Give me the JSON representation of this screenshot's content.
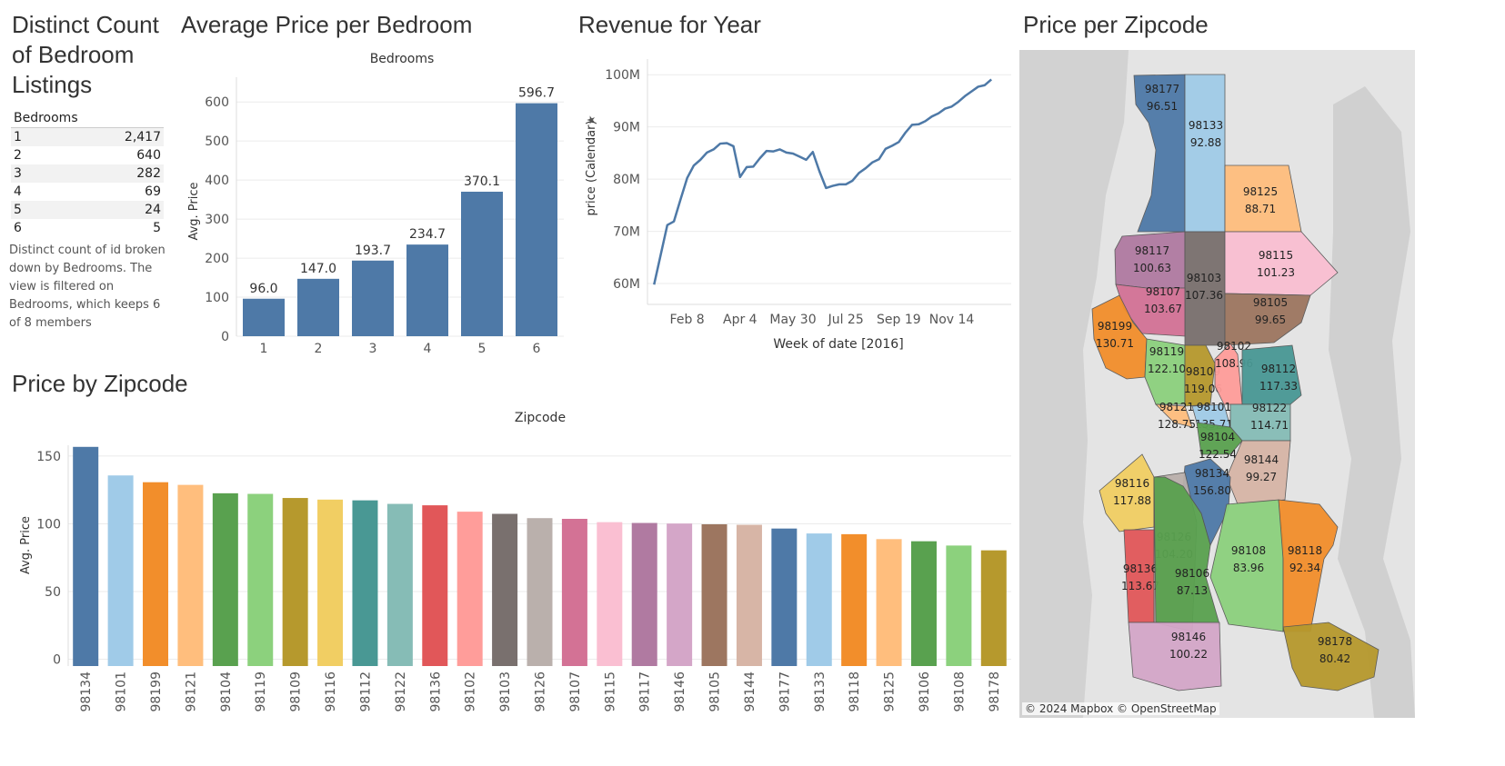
{
  "titles": {
    "distinct_count": "Distinct Count of Bedroom Listings",
    "avg_price_bedroom": "Average Price per Bedroom",
    "revenue_year": "Revenue for Year",
    "price_per_zipcode": "Price per Zipcode",
    "price_by_zipcode": "Price by Zipcode"
  },
  "bedroom_table": {
    "header": "Bedrooms",
    "rows": [
      {
        "bedrooms": "1",
        "count": "2,417"
      },
      {
        "bedrooms": "2",
        "count": "640"
      },
      {
        "bedrooms": "3",
        "count": "282"
      },
      {
        "bedrooms": "4",
        "count": "69"
      },
      {
        "bedrooms": "5",
        "count": "24"
      },
      {
        "bedrooms": "6",
        "count": "5"
      }
    ],
    "caption": "Distinct count of id broken down by Bedrooms. The view is filtered on Bedrooms, which keeps 6 of 8 members"
  },
  "map": {
    "attribution": "© 2024 Mapbox © OpenStreetMap",
    "regions": [
      {
        "zip": "98177",
        "value": "96.51",
        "color": "#4e79a7"
      },
      {
        "zip": "98133",
        "value": "92.88",
        "color": "#a0cbe8"
      },
      {
        "zip": "98125",
        "value": "88.71",
        "color": "#ffbe7d"
      },
      {
        "zip": "98117",
        "value": "100.63",
        "color": "#b07aa1"
      },
      {
        "zip": "98103",
        "value": "107.36",
        "color": "#79706e"
      },
      {
        "zip": "98115",
        "value": "101.23",
        "color": "#fabfd2"
      },
      {
        "zip": "98107",
        "value": "103.67",
        "color": "#d37295"
      },
      {
        "zip": "98105",
        "value": "99.65",
        "color": "#9d7660"
      },
      {
        "zip": "98199",
        "value": "130.71",
        "color": "#f28e2b"
      },
      {
        "zip": "98119",
        "value": "122.10",
        "color": "#8cd17d"
      },
      {
        "zip": "98109",
        "value": "119.06",
        "color": "#b6992d"
      },
      {
        "zip": "98102",
        "value": "108.96",
        "color": "#ff9d9a"
      },
      {
        "zip": "98112",
        "value": "117.33",
        "color": "#499894"
      },
      {
        "zip": "98121",
        "value": "128.75",
        "color": "#ffbe7d"
      },
      {
        "zip": "98101",
        "value": "135.71",
        "color": "#a0cbe8"
      },
      {
        "zip": "98122",
        "value": "114.71",
        "color": "#86bcb6"
      },
      {
        "zip": "98104",
        "value": "122.54",
        "color": "#59a14f"
      },
      {
        "zip": "98144",
        "value": "99.27",
        "color": "#d7b5a6"
      },
      {
        "zip": "98116",
        "value": "117.88",
        "color": "#f1ce63"
      },
      {
        "zip": "98134",
        "value": "156.80",
        "color": "#4e79a7"
      },
      {
        "zip": "98126",
        "value": "104.20",
        "color": "#bab0ac"
      },
      {
        "zip": "98108",
        "value": "83.96",
        "color": "#8cd17d"
      },
      {
        "zip": "98118",
        "value": "92.34",
        "color": "#f28e2b"
      },
      {
        "zip": "98136",
        "value": "113.67",
        "color": "#e15759"
      },
      {
        "zip": "98106",
        "value": "87.13",
        "color": "#59a14f"
      },
      {
        "zip": "98146",
        "value": "100.22",
        "color": "#d4a6c8"
      },
      {
        "zip": "98178",
        "value": "80.42",
        "color": "#b6992d"
      }
    ]
  },
  "chart_data": [
    {
      "id": "avg_price_bedroom",
      "type": "bar",
      "title": "Average Price per Bedroom",
      "xlabel": "Bedrooms",
      "ylabel": "Avg. Price",
      "categories": [
        "1",
        "2",
        "3",
        "4",
        "5",
        "6"
      ],
      "values": [
        96.0,
        147.0,
        193.7,
        234.7,
        370.1,
        596.7
      ],
      "data_labels": [
        "96.0",
        "147.0",
        "193.7",
        "234.7",
        "370.1",
        "596.7"
      ],
      "yticks": [
        0,
        100,
        200,
        300,
        400,
        500,
        600
      ],
      "ylim": [
        0,
        640
      ],
      "color": "#4e79a7",
      "grid": true
    },
    {
      "id": "revenue_year",
      "type": "line",
      "title": "Revenue for Year",
      "xlabel": "Week of date [2016]",
      "ylabel": "price (Calendar)",
      "x_ticks": [
        "Feb 8",
        "Apr 4",
        "May 30",
        "Jul 25",
        "Sep 19",
        "Nov 14"
      ],
      "x_tick_weeks": [
        5,
        13,
        21,
        29,
        37,
        45
      ],
      "yticks": [
        60,
        70,
        80,
        90,
        100
      ],
      "ytick_labels": [
        "60M",
        "70M",
        "80M",
        "90M",
        "100M"
      ],
      "ylim": [
        56,
        103
      ],
      "xlim": [
        -1,
        54
      ],
      "series": [
        {
          "color": "#4e79a7",
          "x": [
            0,
            1,
            2,
            3,
            4,
            5,
            6,
            7,
            8,
            9,
            10,
            11,
            12,
            13,
            14,
            15,
            16,
            17,
            18,
            19,
            20,
            21,
            22,
            23,
            24,
            25,
            26,
            27,
            28,
            29,
            30,
            31,
            32,
            33,
            34,
            35,
            36,
            37,
            38,
            39,
            40,
            41,
            42,
            43,
            44,
            45,
            46,
            47,
            48,
            49,
            50,
            51
          ],
          "y": [
            59.8,
            65.5,
            71.2,
            71.9,
            76.1,
            80.2,
            82.6,
            83.7,
            85.1,
            85.7,
            86.8,
            86.9,
            86.3,
            80.4,
            82.3,
            82.4,
            84.0,
            85.4,
            85.3,
            85.7,
            85.1,
            84.9,
            84.3,
            83.7,
            85.2,
            81.5,
            78.3,
            78.7,
            79.0,
            79.0,
            79.7,
            81.2,
            82.1,
            83.2,
            83.8,
            85.8,
            86.4,
            87.1,
            88.9,
            90.4,
            90.5,
            91.1,
            92.0,
            92.6,
            93.5,
            93.9,
            94.8,
            95.9,
            96.8,
            97.7,
            98.0,
            99.1
          ]
        }
      ]
    },
    {
      "id": "price_by_zipcode",
      "type": "bar",
      "title": "Price by Zipcode",
      "xlabel": "Zipcode",
      "ylabel": "Avg. Price",
      "categories": [
        "98134",
        "98101",
        "98199",
        "98121",
        "98104",
        "98119",
        "98109",
        "98116",
        "98112",
        "98122",
        "98136",
        "98102",
        "98103",
        "98126",
        "98107",
        "98115",
        "98117",
        "98146",
        "98105",
        "98144",
        "98177",
        "98133",
        "98118",
        "98125",
        "98106",
        "98108",
        "98178"
      ],
      "values": [
        156.8,
        135.71,
        130.71,
        128.75,
        122.54,
        122.1,
        119.06,
        117.88,
        117.33,
        114.71,
        113.67,
        108.96,
        107.36,
        104.2,
        103.67,
        101.23,
        100.63,
        100.22,
        99.65,
        99.27,
        96.51,
        92.88,
        92.34,
        88.71,
        87.13,
        83.96,
        80.42
      ],
      "colors": [
        "#4e79a7",
        "#a0cbe8",
        "#f28e2b",
        "#ffbe7d",
        "#59a14f",
        "#8cd17d",
        "#b6992d",
        "#f1ce63",
        "#499894",
        "#86bcb6",
        "#e15759",
        "#ff9d9a",
        "#79706e",
        "#bab0ac",
        "#d37295",
        "#fabfd2",
        "#b07aa1",
        "#d4a6c8",
        "#9d7660",
        "#d7b5a6",
        "#4e79a7",
        "#a0cbe8",
        "#f28e2b",
        "#ffbe7d",
        "#59a14f",
        "#8cd17d",
        "#b6992d"
      ],
      "yticks": [
        0,
        50,
        100,
        150
      ],
      "ylim": [
        -5,
        158
      ],
      "grid": true
    }
  ]
}
